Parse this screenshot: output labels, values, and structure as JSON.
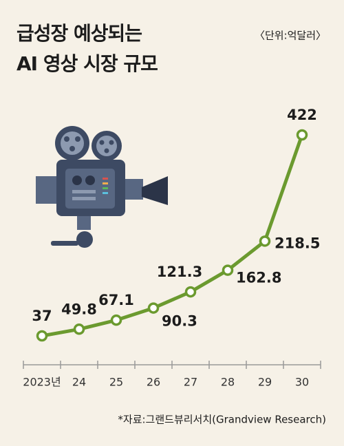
{
  "chart_data": {
    "type": "line",
    "title": [
      "급성장 예상되는",
      "AI 영상 시장 규모"
    ],
    "unit_note": "〈단위:억달러〉",
    "source": "*자료:그랜드뷰리서치(Grandview Research)",
    "categories": [
      "2023년",
      "24",
      "25",
      "26",
      "27",
      "28",
      "29",
      "30"
    ],
    "values": [
      37,
      49.8,
      67.1,
      90.3,
      121.3,
      162.8,
      218.5,
      422
    ],
    "color": "#6b9a2f"
  }
}
